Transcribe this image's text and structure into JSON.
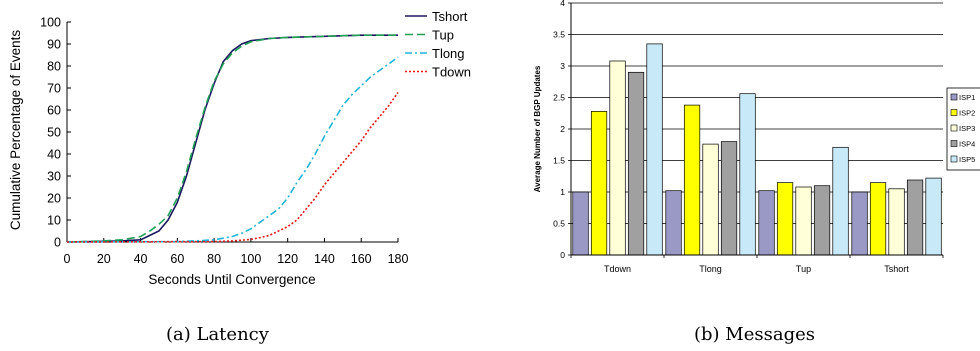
{
  "charts": [
    {
      "id": "latency",
      "caption": "(a) Latency",
      "chart_data": {
        "type": "line",
        "xlabel": "Seconds Until Convergence",
        "ylabel": "Cumulative Percentage of Events",
        "xlim": [
          0,
          180
        ],
        "ylim": [
          0,
          100
        ],
        "x_ticks": [
          "0",
          "20",
          "40",
          "60",
          "80",
          "100",
          "120",
          "140",
          "160",
          "180"
        ],
        "y_ticks": [
          "0",
          "10",
          "20",
          "30",
          "40",
          "50",
          "60",
          "70",
          "80",
          "90",
          "100"
        ],
        "grid": false,
        "legend_position": "top-right",
        "series": [
          {
            "name": "Tshort",
            "color": "#1a1a5e",
            "dash": "solid",
            "x": [
              0,
              20,
              30,
              40,
              45,
              50,
              55,
              60,
              65,
              70,
              75,
              80,
              85,
              90,
              95,
              100,
              110,
              120,
              140,
              160,
              180
            ],
            "y": [
              0,
              0.3,
              0.5,
              1,
              3,
              5,
              10,
              18,
              30,
              45,
              60,
              72,
              82,
              87,
              90,
              91.5,
              92.5,
              93,
              93.5,
              94,
              94
            ]
          },
          {
            "name": "Tup",
            "color": "#21a056",
            "dash": "dashed",
            "x": [
              0,
              20,
              30,
              40,
              45,
              50,
              55,
              60,
              65,
              70,
              75,
              80,
              85,
              90,
              95,
              100,
              110,
              120,
              140,
              160,
              180
            ],
            "y": [
              0,
              0.5,
              1,
              2.5,
              5,
              8,
              12,
              20,
              32,
              47,
              61,
              73,
              81,
              86,
              89,
              91,
              92.5,
              93,
              93.5,
              94,
              94
            ]
          },
          {
            "name": "Tlong",
            "color": "#22b4d6",
            "dash": "dashdot",
            "x": [
              0,
              60,
              70,
              80,
              90,
              95,
              100,
              105,
              110,
              115,
              120,
              125,
              130,
              135,
              140,
              145,
              150,
              155,
              160,
              165,
              170,
              175,
              180
            ],
            "y": [
              0,
              0.2,
              0.5,
              1,
              2.5,
              4,
              6,
              9,
              12,
              15,
              20,
              27,
              33,
              40,
              48,
              55,
              62,
              67,
              71,
              75,
              78,
              81,
              84
            ]
          },
          {
            "name": "Tdown",
            "color": "#e01818",
            "dash": "dotted",
            "x": [
              0,
              80,
              90,
              100,
              105,
              110,
              115,
              120,
              125,
              130,
              135,
              140,
              145,
              150,
              155,
              160,
              165,
              170,
              175,
              180
            ],
            "y": [
              0,
              0.2,
              0.5,
              1.2,
              2,
              3,
              5,
              7,
              10,
              15,
              20,
              26,
              31,
              36,
              41,
              46,
              52,
              57,
              62,
              68
            ]
          }
        ]
      }
    },
    {
      "id": "messages",
      "caption": "(b) Messages",
      "chart_data": {
        "type": "bar",
        "ylabel": "Average Number of BGP Updates",
        "ylim": [
          0,
          4
        ],
        "y_ticks": [
          "0",
          "0.5",
          "1",
          "1.5",
          "2",
          "2.5",
          "3",
          "3.5",
          "4"
        ],
        "grid": true,
        "legend_position": "right",
        "categories": [
          "Tdown",
          "Tlong",
          "Tup",
          "Tshort"
        ],
        "series": [
          {
            "name": "ISP1",
            "color": "#9a99c6",
            "values": [
              1.0,
              1.02,
              1.02,
              1.0
            ]
          },
          {
            "name": "ISP2",
            "color": "#ffff00",
            "values": [
              2.28,
              2.38,
              1.15,
              1.15
            ]
          },
          {
            "name": "ISP3",
            "color": "#ffffd8",
            "values": [
              3.08,
              1.76,
              1.08,
              1.05
            ]
          },
          {
            "name": "ISP4",
            "color": "#a0a0a0",
            "values": [
              2.9,
              1.8,
              1.1,
              1.19
            ]
          },
          {
            "name": "ISP5",
            "color": "#c8eaf8",
            "values": [
              3.35,
              2.56,
              1.71,
              1.22
            ]
          }
        ]
      }
    }
  ]
}
